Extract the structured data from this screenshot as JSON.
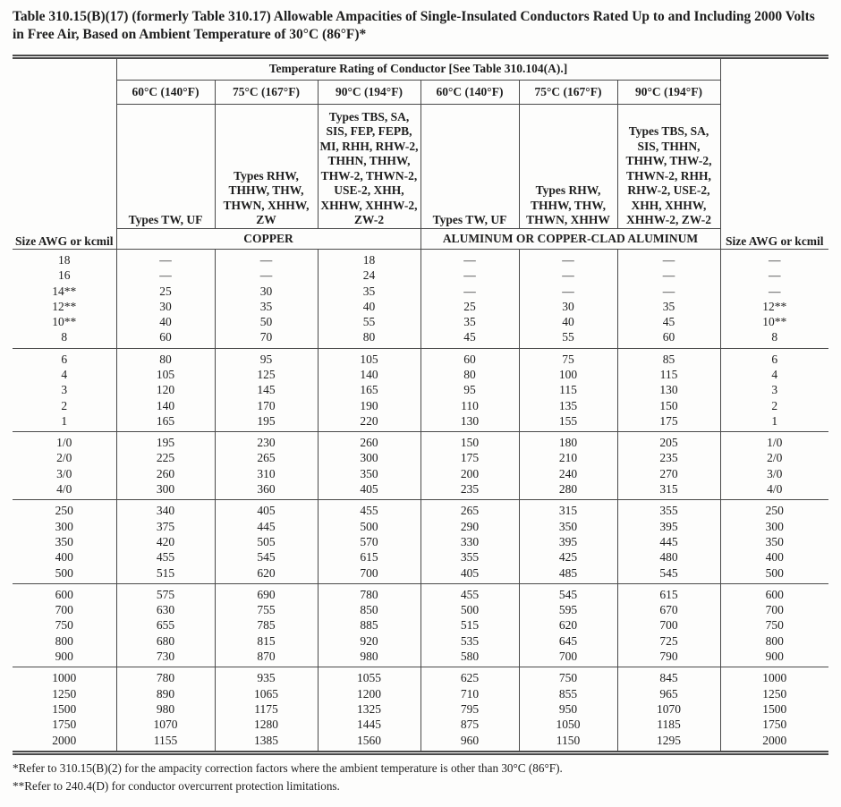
{
  "page": {
    "title": "Table 310.15(B)(17)  (formerly Table 310.17) Allowable Ampacities of Single-Insulated Conductors Rated Up to and Including 2000 Volts in Free Air, Based on Ambient Temperature of 30°C (86°F)*"
  },
  "table": {
    "size_label": "Size AWG or kcmil",
    "temp_rating_header": "Temperature Rating of Conductor [See Table 310.104(A).]",
    "temps": [
      "60°C (140°F)",
      "75°C (167°F)",
      "90°C (194°F)",
      "60°C (140°F)",
      "75°C (167°F)",
      "90°C (194°F)"
    ],
    "types": [
      "Types TW, UF",
      "Types RHW, THHW, THW, THWN, XHHW, ZW",
      "Types TBS, SA, SIS, FEP, FEPB, MI, RHH, RHW-2, THHN, THHW, THW-2, THWN-2, USE-2, XHH, XHHW, XHHW-2, ZW-2",
      "Types TW, UF",
      "Types RHW, THHW, THW, THWN, XHHW",
      "Types TBS, SA, SIS, THHN, THHW, THW-2, THWN-2, RHH, RHW-2, USE-2, XHH, XHHW, XHHW-2, ZW-2"
    ],
    "materials": [
      "COPPER",
      "ALUMINUM OR COPPER-CLAD ALUMINUM"
    ],
    "columns": [
      "Size AWG or kcmil",
      "Copper 60°C",
      "Copper 75°C",
      "Copper 90°C",
      "Aluminum 60°C",
      "Aluminum 75°C",
      "Aluminum 90°C",
      "Size AWG or kcmil"
    ],
    "groups": [
      {
        "rows": [
          [
            "18",
            "—",
            "—",
            "18",
            "—",
            "—",
            "—",
            "—"
          ],
          [
            "16",
            "—",
            "—",
            "24",
            "—",
            "—",
            "—",
            "—"
          ],
          [
            "14**",
            "25",
            "30",
            "35",
            "—",
            "—",
            "—",
            "—"
          ],
          [
            "12**",
            "30",
            "35",
            "40",
            "25",
            "30",
            "35",
            "12**"
          ],
          [
            "10**",
            "40",
            "50",
            "55",
            "35",
            "40",
            "45",
            "10**"
          ],
          [
            "8",
            "60",
            "70",
            "80",
            "45",
            "55",
            "60",
            "8"
          ]
        ]
      },
      {
        "rows": [
          [
            "6",
            "80",
            "95",
            "105",
            "60",
            "75",
            "85",
            "6"
          ],
          [
            "4",
            "105",
            "125",
            "140",
            "80",
            "100",
            "115",
            "4"
          ],
          [
            "3",
            "120",
            "145",
            "165",
            "95",
            "115",
            "130",
            "3"
          ],
          [
            "2",
            "140",
            "170",
            "190",
            "110",
            "135",
            "150",
            "2"
          ],
          [
            "1",
            "165",
            "195",
            "220",
            "130",
            "155",
            "175",
            "1"
          ]
        ]
      },
      {
        "rows": [
          [
            "1/0",
            "195",
            "230",
            "260",
            "150",
            "180",
            "205",
            "1/0"
          ],
          [
            "2/0",
            "225",
            "265",
            "300",
            "175",
            "210",
            "235",
            "2/0"
          ],
          [
            "3/0",
            "260",
            "310",
            "350",
            "200",
            "240",
            "270",
            "3/0"
          ],
          [
            "4/0",
            "300",
            "360",
            "405",
            "235",
            "280",
            "315",
            "4/0"
          ]
        ]
      },
      {
        "rows": [
          [
            "250",
            "340",
            "405",
            "455",
            "265",
            "315",
            "355",
            "250"
          ],
          [
            "300",
            "375",
            "445",
            "500",
            "290",
            "350",
            "395",
            "300"
          ],
          [
            "350",
            "420",
            "505",
            "570",
            "330",
            "395",
            "445",
            "350"
          ],
          [
            "400",
            "455",
            "545",
            "615",
            "355",
            "425",
            "480",
            "400"
          ],
          [
            "500",
            "515",
            "620",
            "700",
            "405",
            "485",
            "545",
            "500"
          ]
        ]
      },
      {
        "rows": [
          [
            "600",
            "575",
            "690",
            "780",
            "455",
            "545",
            "615",
            "600"
          ],
          [
            "700",
            "630",
            "755",
            "850",
            "500",
            "595",
            "670",
            "700"
          ],
          [
            "750",
            "655",
            "785",
            "885",
            "515",
            "620",
            "700",
            "750"
          ],
          [
            "800",
            "680",
            "815",
            "920",
            "535",
            "645",
            "725",
            "800"
          ],
          [
            "900",
            "730",
            "870",
            "980",
            "580",
            "700",
            "790",
            "900"
          ]
        ]
      },
      {
        "rows": [
          [
            "1000",
            "780",
            "935",
            "1055",
            "625",
            "750",
            "845",
            "1000"
          ],
          [
            "1250",
            "890",
            "1065",
            "1200",
            "710",
            "855",
            "965",
            "1250"
          ],
          [
            "1500",
            "980",
            "1175",
            "1325",
            "795",
            "950",
            "1070",
            "1500"
          ],
          [
            "1750",
            "1070",
            "1280",
            "1445",
            "875",
            "1050",
            "1185",
            "1750"
          ],
          [
            "2000",
            "1155",
            "1385",
            "1560",
            "960",
            "1150",
            "1295",
            "2000"
          ]
        ]
      }
    ]
  },
  "footnotes": [
    "*Refer to 310.15(B)(2) for the ampacity correction factors where the ambient temperature is other than 30°C (86°F).",
    "**Refer to 240.4(D) for conductor overcurrent protection limitations."
  ],
  "colors": {
    "border": "#4a4a4a",
    "text": "#1e1e1e",
    "background": "#fdfdfc"
  }
}
